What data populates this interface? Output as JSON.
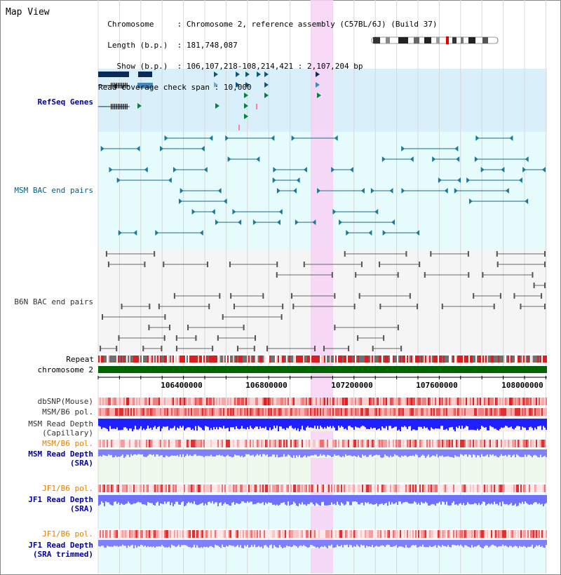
{
  "title": "Map View",
  "header": {
    "chromosome_key": "Chromosome",
    "chromosome_value": "Chromosome 2, reference assembly (C57BL/6J) (Build 37)",
    "length_key": "Length (b.p.)",
    "length_value": "181,748,087",
    "show_key": "Show (b.p.)",
    "show_value": "106,107,218-108,214,421 : 2,107,204 bp",
    "coverage_key": "Read coverage check span",
    "coverage_value": "10,000"
  },
  "tracks": {
    "refseq": "RefSeq Genes",
    "msm_bac": "MSM BAC end pairs",
    "b6n_bac": "B6N BAC end pairs",
    "repeat": "Repeat",
    "chromosome": "chromosome 2",
    "dbsnp": "dbSNP(Mouse)",
    "msm_b6_pol_1": "MSM/B6 pol.",
    "msm_read_depth_cap_1": "MSM Read Depth",
    "msm_read_depth_cap_2": "(Capillary)",
    "msm_b6_pol_2": "MSM/B6 pol.",
    "msm_read_depth_sra_1": "MSM Read Depth",
    "msm_read_depth_sra_2": "(SRA)",
    "jf1_b6_pol_1": "JF1/B6 pol.",
    "jf1_read_depth_sra_1": "JF1 Read Depth",
    "jf1_read_depth_sra_2": "(SRA)",
    "jf1_b6_pol_2": "JF1/B6 pol.",
    "jf1_read_depth_trim_1": "JF1 Read Depth",
    "jf1_read_depth_trim_2": "(SRA trimmed)"
  },
  "axis_ticks": [
    "106400000",
    "106800000",
    "107200000",
    "107600000",
    "108000000"
  ],
  "colors": {
    "refseq_bg": "#d9f0fb",
    "msm_bg": "#e6fbfb",
    "b6n_bg": "#f5f5f5",
    "highlight": "#f7d2f4",
    "label_blue": "#0000a0",
    "label_teal": "#006080",
    "label_orange": "#e08000",
    "chromosome_green": "#006400",
    "depth_blue": "#2020ff",
    "sra_blue": "#8080ff"
  }
}
